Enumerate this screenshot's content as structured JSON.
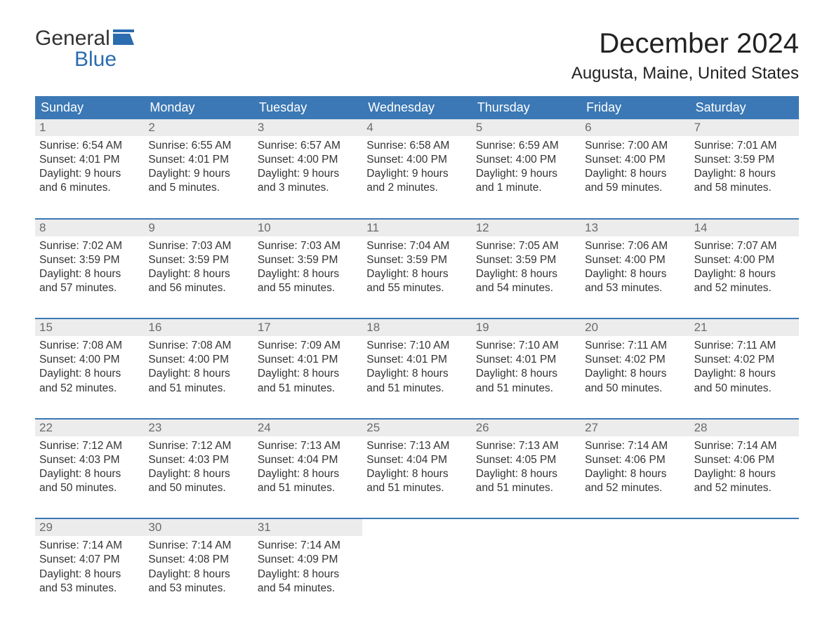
{
  "brand": {
    "word1": "General",
    "word2": "Blue",
    "accent_color": "#2b6cb0"
  },
  "title": "December 2024",
  "location": "Augusta, Maine, United States",
  "colors": {
    "header_bg": "#3b78b5",
    "header_fg": "#ffffff",
    "daynum_bg": "#ececec",
    "daynum_fg": "#6b6b6b",
    "week_border": "#3b78b5",
    "body_text": "#333333",
    "page_bg": "#ffffff"
  },
  "weekday_labels": [
    "Sunday",
    "Monday",
    "Tuesday",
    "Wednesday",
    "Thursday",
    "Friday",
    "Saturday"
  ],
  "weeks": [
    [
      {
        "n": "1",
        "sunrise": "Sunrise: 6:54 AM",
        "sunset": "Sunset: 4:01 PM",
        "dl1": "Daylight: 9 hours",
        "dl2": "and 6 minutes."
      },
      {
        "n": "2",
        "sunrise": "Sunrise: 6:55 AM",
        "sunset": "Sunset: 4:01 PM",
        "dl1": "Daylight: 9 hours",
        "dl2": "and 5 minutes."
      },
      {
        "n": "3",
        "sunrise": "Sunrise: 6:57 AM",
        "sunset": "Sunset: 4:00 PM",
        "dl1": "Daylight: 9 hours",
        "dl2": "and 3 minutes."
      },
      {
        "n": "4",
        "sunrise": "Sunrise: 6:58 AM",
        "sunset": "Sunset: 4:00 PM",
        "dl1": "Daylight: 9 hours",
        "dl2": "and 2 minutes."
      },
      {
        "n": "5",
        "sunrise": "Sunrise: 6:59 AM",
        "sunset": "Sunset: 4:00 PM",
        "dl1": "Daylight: 9 hours",
        "dl2": "and 1 minute."
      },
      {
        "n": "6",
        "sunrise": "Sunrise: 7:00 AM",
        "sunset": "Sunset: 4:00 PM",
        "dl1": "Daylight: 8 hours",
        "dl2": "and 59 minutes."
      },
      {
        "n": "7",
        "sunrise": "Sunrise: 7:01 AM",
        "sunset": "Sunset: 3:59 PM",
        "dl1": "Daylight: 8 hours",
        "dl2": "and 58 minutes."
      }
    ],
    [
      {
        "n": "8",
        "sunrise": "Sunrise: 7:02 AM",
        "sunset": "Sunset: 3:59 PM",
        "dl1": "Daylight: 8 hours",
        "dl2": "and 57 minutes."
      },
      {
        "n": "9",
        "sunrise": "Sunrise: 7:03 AM",
        "sunset": "Sunset: 3:59 PM",
        "dl1": "Daylight: 8 hours",
        "dl2": "and 56 minutes."
      },
      {
        "n": "10",
        "sunrise": "Sunrise: 7:03 AM",
        "sunset": "Sunset: 3:59 PM",
        "dl1": "Daylight: 8 hours",
        "dl2": "and 55 minutes."
      },
      {
        "n": "11",
        "sunrise": "Sunrise: 7:04 AM",
        "sunset": "Sunset: 3:59 PM",
        "dl1": "Daylight: 8 hours",
        "dl2": "and 55 minutes."
      },
      {
        "n": "12",
        "sunrise": "Sunrise: 7:05 AM",
        "sunset": "Sunset: 3:59 PM",
        "dl1": "Daylight: 8 hours",
        "dl2": "and 54 minutes."
      },
      {
        "n": "13",
        "sunrise": "Sunrise: 7:06 AM",
        "sunset": "Sunset: 4:00 PM",
        "dl1": "Daylight: 8 hours",
        "dl2": "and 53 minutes."
      },
      {
        "n": "14",
        "sunrise": "Sunrise: 7:07 AM",
        "sunset": "Sunset: 4:00 PM",
        "dl1": "Daylight: 8 hours",
        "dl2": "and 52 minutes."
      }
    ],
    [
      {
        "n": "15",
        "sunrise": "Sunrise: 7:08 AM",
        "sunset": "Sunset: 4:00 PM",
        "dl1": "Daylight: 8 hours",
        "dl2": "and 52 minutes."
      },
      {
        "n": "16",
        "sunrise": "Sunrise: 7:08 AM",
        "sunset": "Sunset: 4:00 PM",
        "dl1": "Daylight: 8 hours",
        "dl2": "and 51 minutes."
      },
      {
        "n": "17",
        "sunrise": "Sunrise: 7:09 AM",
        "sunset": "Sunset: 4:01 PM",
        "dl1": "Daylight: 8 hours",
        "dl2": "and 51 minutes."
      },
      {
        "n": "18",
        "sunrise": "Sunrise: 7:10 AM",
        "sunset": "Sunset: 4:01 PM",
        "dl1": "Daylight: 8 hours",
        "dl2": "and 51 minutes."
      },
      {
        "n": "19",
        "sunrise": "Sunrise: 7:10 AM",
        "sunset": "Sunset: 4:01 PM",
        "dl1": "Daylight: 8 hours",
        "dl2": "and 51 minutes."
      },
      {
        "n": "20",
        "sunrise": "Sunrise: 7:11 AM",
        "sunset": "Sunset: 4:02 PM",
        "dl1": "Daylight: 8 hours",
        "dl2": "and 50 minutes."
      },
      {
        "n": "21",
        "sunrise": "Sunrise: 7:11 AM",
        "sunset": "Sunset: 4:02 PM",
        "dl1": "Daylight: 8 hours",
        "dl2": "and 50 minutes."
      }
    ],
    [
      {
        "n": "22",
        "sunrise": "Sunrise: 7:12 AM",
        "sunset": "Sunset: 4:03 PM",
        "dl1": "Daylight: 8 hours",
        "dl2": "and 50 minutes."
      },
      {
        "n": "23",
        "sunrise": "Sunrise: 7:12 AM",
        "sunset": "Sunset: 4:03 PM",
        "dl1": "Daylight: 8 hours",
        "dl2": "and 50 minutes."
      },
      {
        "n": "24",
        "sunrise": "Sunrise: 7:13 AM",
        "sunset": "Sunset: 4:04 PM",
        "dl1": "Daylight: 8 hours",
        "dl2": "and 51 minutes."
      },
      {
        "n": "25",
        "sunrise": "Sunrise: 7:13 AM",
        "sunset": "Sunset: 4:04 PM",
        "dl1": "Daylight: 8 hours",
        "dl2": "and 51 minutes."
      },
      {
        "n": "26",
        "sunrise": "Sunrise: 7:13 AM",
        "sunset": "Sunset: 4:05 PM",
        "dl1": "Daylight: 8 hours",
        "dl2": "and 51 minutes."
      },
      {
        "n": "27",
        "sunrise": "Sunrise: 7:14 AM",
        "sunset": "Sunset: 4:06 PM",
        "dl1": "Daylight: 8 hours",
        "dl2": "and 52 minutes."
      },
      {
        "n": "28",
        "sunrise": "Sunrise: 7:14 AM",
        "sunset": "Sunset: 4:06 PM",
        "dl1": "Daylight: 8 hours",
        "dl2": "and 52 minutes."
      }
    ],
    [
      {
        "n": "29",
        "sunrise": "Sunrise: 7:14 AM",
        "sunset": "Sunset: 4:07 PM",
        "dl1": "Daylight: 8 hours",
        "dl2": "and 53 minutes."
      },
      {
        "n": "30",
        "sunrise": "Sunrise: 7:14 AM",
        "sunset": "Sunset: 4:08 PM",
        "dl1": "Daylight: 8 hours",
        "dl2": "and 53 minutes."
      },
      {
        "n": "31",
        "sunrise": "Sunrise: 7:14 AM",
        "sunset": "Sunset: 4:09 PM",
        "dl1": "Daylight: 8 hours",
        "dl2": "and 54 minutes."
      },
      null,
      null,
      null,
      null
    ]
  ]
}
